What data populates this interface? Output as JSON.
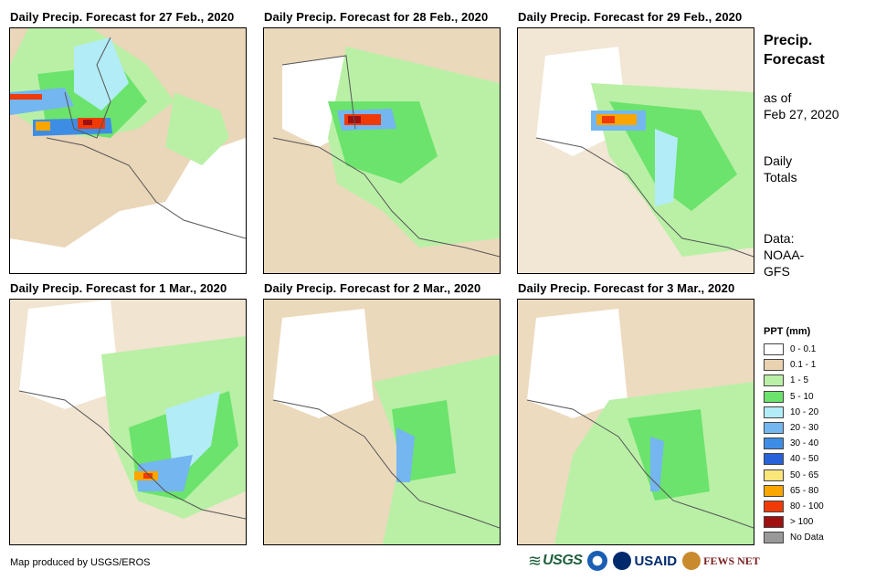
{
  "panels": [
    {
      "title": "Daily Precip. Forecast for 27 Feb., 2020"
    },
    {
      "title": "Daily Precip. Forecast for 28 Feb., 2020"
    },
    {
      "title": "Daily Precip. Forecast for 29 Feb., 2020"
    },
    {
      "title": "Daily Precip. Forecast for 1 Mar., 2020"
    },
    {
      "title": "Daily Precip. Forecast for 2 Mar., 2020"
    },
    {
      "title": "Daily Precip. Forecast for 3 Mar., 2020"
    }
  ],
  "sidebar": {
    "title_line1": "Precip.",
    "title_line2": "Forecast",
    "asof_line1": "as of",
    "asof_line2": "Feb 27, 2020",
    "totals_line1": "Daily",
    "totals_line2": "Totals",
    "data_line1": "Data:",
    "data_line2": "NOAA-",
    "data_line3": "GFS"
  },
  "legend": {
    "title": "PPT (mm)",
    "items": [
      {
        "label": "0 - 0.1",
        "color": "#ffffff"
      },
      {
        "label": "0.1 - 1",
        "color": "#e8d2b0"
      },
      {
        "label": "1 - 5",
        "color": "#b9f0a6"
      },
      {
        "label": "5 - 10",
        "color": "#6ce36c"
      },
      {
        "label": "10 - 20",
        "color": "#b2ecf6"
      },
      {
        "label": "20 - 30",
        "color": "#74b6ef"
      },
      {
        "label": "30 - 40",
        "color": "#3e8de5"
      },
      {
        "label": "40 - 50",
        "color": "#2862d8"
      },
      {
        "label": "50 - 65",
        "color": "#fbe67a"
      },
      {
        "label": "65 - 80",
        "color": "#f9a600"
      },
      {
        "label": "80 - 100",
        "color": "#f03a08"
      },
      {
        "label": "> 100",
        "color": "#a01010"
      },
      {
        "label": "No Data",
        "color": "#999999"
      }
    ]
  },
  "footer": {
    "credit": "Map produced by USGS/EROS",
    "logo_usgs": "USGS",
    "logo_usaid": "USAID",
    "logo_fews": "FEWS NET"
  }
}
